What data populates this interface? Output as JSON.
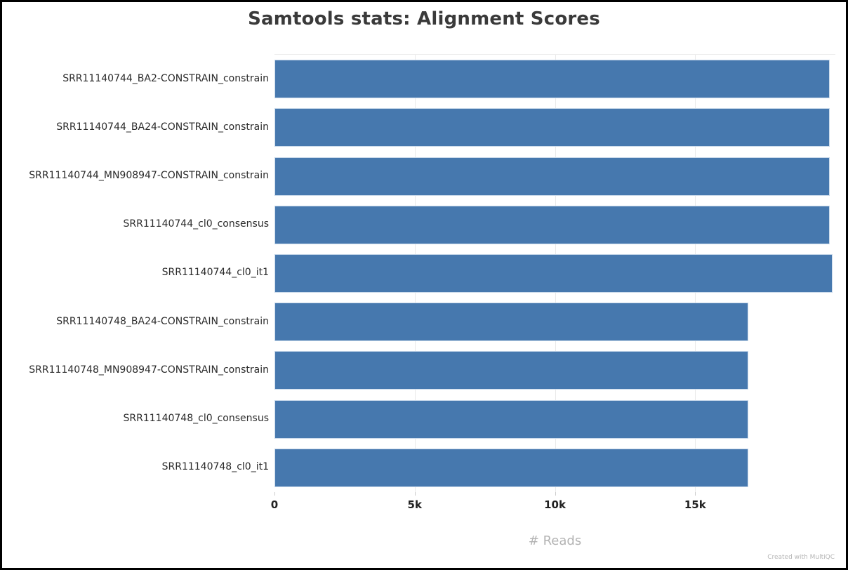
{
  "watermark": "Created with MultiQC",
  "colors": {
    "bar": "#4678ae",
    "bar_border": "#c9d9ea",
    "grid": "#e9e9e9",
    "tick": "#cccccc",
    "title_text": "#3a3a3a",
    "label_text": "#2b2b2b",
    "axis_label_text": "#b3b3b3",
    "watermark_text": "#b5b5b5"
  },
  "chart_data": {
    "type": "bar",
    "orientation": "horizontal",
    "title": "Samtools stats: Alignment Scores",
    "xlabel": "# Reads",
    "ylabel": "",
    "xlim": [
      0,
      20000
    ],
    "grid": true,
    "legend": false,
    "categories": [
      "SRR11140744_BA2-CONSTRAIN_constrain",
      "SRR11140744_BA24-CONSTRAIN_constrain",
      "SRR11140744_MN908947-CONSTRAIN_constrain",
      "SRR11140744_cl0_consensus",
      "SRR11140744_cl0_it1",
      "SRR11140748_BA24-CONSTRAIN_constrain",
      "SRR11140748_MN908947-CONSTRAIN_constrain",
      "SRR11140748_cl0_consensus",
      "SRR11140748_cl0_it1"
    ],
    "values": [
      19800,
      19800,
      19800,
      19800,
      19900,
      16900,
      16900,
      16900,
      16900
    ],
    "x_ticks": [
      {
        "value": 0,
        "label": "0"
      },
      {
        "value": 5000,
        "label": "5k"
      },
      {
        "value": 10000,
        "label": "10k"
      },
      {
        "value": 15000,
        "label": "15k"
      }
    ]
  }
}
